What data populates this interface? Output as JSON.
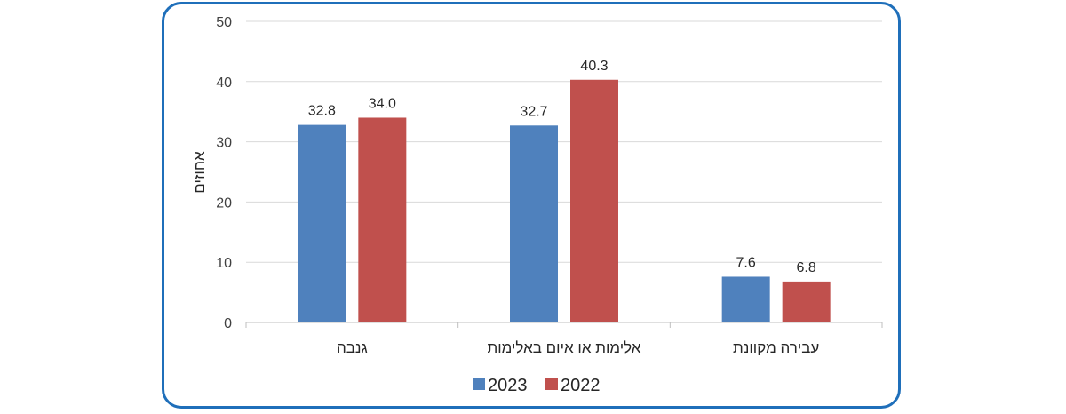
{
  "chart_data": {
    "type": "bar",
    "title": "",
    "xlabel": "",
    "ylabel": "אחוזים",
    "ylim": [
      0,
      50
    ],
    "yticks": [
      0,
      10,
      20,
      30,
      40,
      50
    ],
    "grid": true,
    "legend_position": "bottom",
    "categories": [
      "גנבה",
      "אלימות או איום באלימות",
      "עבירה מקוונת"
    ],
    "series": [
      {
        "name": "2023",
        "color": "#4f81bd",
        "values": [
          32.8,
          32.7,
          7.6
        ],
        "labels": [
          "32.8",
          "32.7",
          "7.6"
        ]
      },
      {
        "name": "2022",
        "color": "#c0504d",
        "values": [
          34.0,
          40.3,
          6.8
        ],
        "labels": [
          "34.0",
          "40.3",
          "6.8"
        ]
      }
    ]
  },
  "frame_color": "#1f6fba"
}
